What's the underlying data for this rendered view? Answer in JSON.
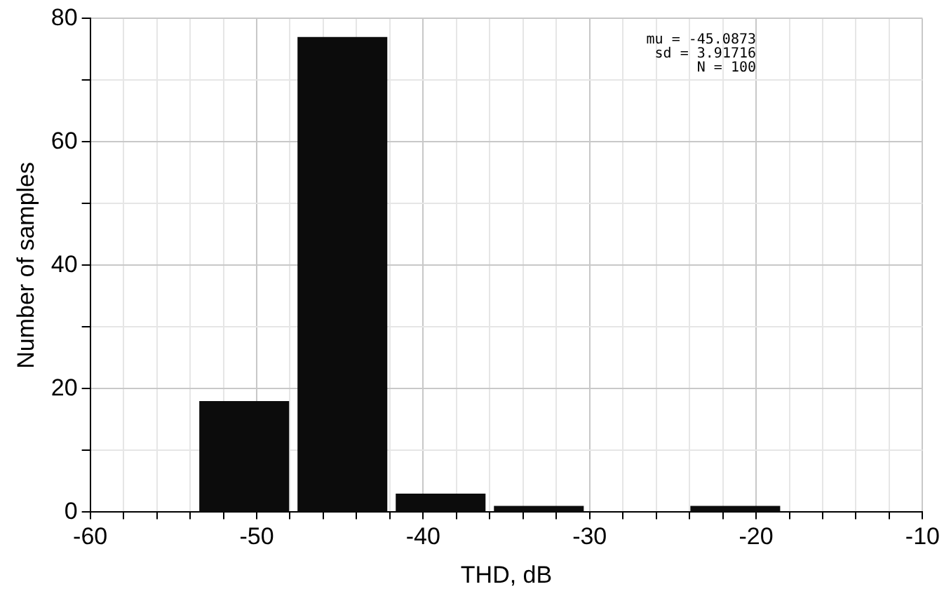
{
  "chart_data": {
    "type": "histogram",
    "xlabel": "THD, dB",
    "ylabel": "Number of samples",
    "bins": [
      -53.7,
      -47.8,
      -41.9,
      -36.0,
      -30.1,
      -24.2,
      -18.3
    ],
    "values": [
      18,
      77,
      3,
      1,
      0,
      1
    ],
    "color": "#0c0c0c",
    "xlim": [
      -60,
      -10
    ],
    "xticks": [
      -60,
      {
        "value": -58,
        "label": null
      },
      {
        "value": -56,
        "label": null
      },
      {
        "value": -54,
        "label": null
      },
      {
        "value": -52,
        "label": null
      },
      -50,
      {
        "value": -48,
        "label": null
      },
      {
        "value": -46,
        "label": null
      },
      {
        "value": -44,
        "label": null
      },
      {
        "value": -42,
        "label": null
      },
      -40,
      {
        "value": -38,
        "label": null
      },
      {
        "value": -36,
        "label": null
      },
      {
        "value": -34,
        "label": null
      },
      {
        "value": -32,
        "label": null
      },
      -30,
      {
        "value": -28,
        "label": null
      },
      {
        "value": -26,
        "label": null
      },
      {
        "value": -24,
        "label": null
      },
      {
        "value": -22,
        "label": null
      },
      -20,
      {
        "value": -18,
        "label": null
      },
      {
        "value": -16,
        "label": null
      },
      {
        "value": -14,
        "label": null
      },
      {
        "value": -12,
        "label": null
      },
      -10
    ],
    "ylim": [
      0,
      80
    ],
    "yticks": [
      0,
      {
        "value": 10,
        "label": null
      },
      20,
      {
        "value": 30,
        "label": null
      },
      40,
      {
        "value": 50,
        "label": null
      },
      60,
      {
        "value": 70,
        "label": null
      },
      80
    ],
    "grid": true,
    "annotations": [
      "mu = -45.0873",
      "sd = 3.91716",
      "N = 100"
    ]
  }
}
